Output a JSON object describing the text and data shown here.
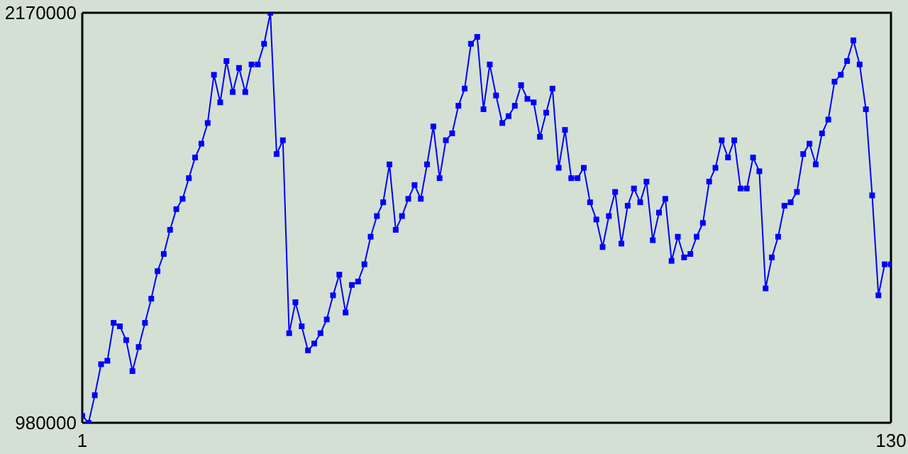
{
  "chart_data": {
    "type": "line",
    "x": [
      1,
      2,
      3,
      4,
      5,
      6,
      7,
      8,
      9,
      10,
      11,
      12,
      13,
      14,
      15,
      16,
      17,
      18,
      19,
      20,
      21,
      22,
      23,
      24,
      25,
      26,
      27,
      28,
      29,
      30,
      31,
      32,
      33,
      34,
      35,
      36,
      37,
      38,
      39,
      40,
      41,
      42,
      43,
      44,
      45,
      46,
      47,
      48,
      49,
      50,
      51,
      52,
      53,
      54,
      55,
      56,
      57,
      58,
      59,
      60,
      61,
      62,
      63,
      64,
      65,
      66,
      67,
      68,
      69,
      70,
      71,
      72,
      73,
      74,
      75,
      76,
      77,
      78,
      79,
      80,
      81,
      82,
      83,
      84,
      85,
      86,
      87,
      88,
      89,
      90,
      91,
      92,
      93,
      94,
      95,
      96,
      97,
      98,
      99,
      100,
      101,
      102,
      103,
      104,
      105,
      106,
      107,
      108,
      109,
      110,
      111,
      112,
      113,
      114,
      115,
      116,
      117,
      118,
      119,
      120,
      121,
      122,
      123,
      124,
      125,
      126,
      127,
      128,
      129,
      130
    ],
    "series": [
      {
        "color": "#0000ff",
        "values": [
          1000000,
          980000,
          1060000,
          1150000,
          1160000,
          1270000,
          1260000,
          1220000,
          1130000,
          1200000,
          1270000,
          1340000,
          1420000,
          1470000,
          1540000,
          1600000,
          1630000,
          1690000,
          1750000,
          1790000,
          1850000,
          1990000,
          1910000,
          2030000,
          1940000,
          2010000,
          1940000,
          2020000,
          2020000,
          2080000,
          2170000,
          1760000,
          1800000,
          1240000,
          1330000,
          1260000,
          1190000,
          1210000,
          1240000,
          1280000,
          1350000,
          1410000,
          1300000,
          1380000,
          1390000,
          1440000,
          1520000,
          1580000,
          1620000,
          1730000,
          1540000,
          1580000,
          1630000,
          1670000,
          1630000,
          1730000,
          1840000,
          1690000,
          1800000,
          1820000,
          1900000,
          1950000,
          2080000,
          2100000,
          1890000,
          2020000,
          1930000,
          1850000,
          1870000,
          1900000,
          1960000,
          1920000,
          1910000,
          1810000,
          1880000,
          1950000,
          1720000,
          1830000,
          1690000,
          1690000,
          1720000,
          1620000,
          1570000,
          1490000,
          1580000,
          1650000,
          1500000,
          1610000,
          1660000,
          1620000,
          1680000,
          1510000,
          1590000,
          1630000,
          1450000,
          1520000,
          1460000,
          1470000,
          1520000,
          1560000,
          1680000,
          1720000,
          1800000,
          1750000,
          1800000,
          1660000,
          1660000,
          1750000,
          1710000,
          1370000,
          1460000,
          1520000,
          1610000,
          1620000,
          1650000,
          1760000,
          1790000,
          1730000,
          1820000,
          1860000,
          1970000,
          1990000,
          2030000,
          2090000,
          2020000,
          1890000,
          1640000,
          1350000,
          1440000,
          1440000
        ]
      }
    ],
    "xlim": [
      1,
      130
    ],
    "xticks": [
      1,
      130
    ],
    "ylim": [
      980000,
      2170000
    ],
    "yticks": [
      980000,
      2170000
    ],
    "marker": "square",
    "line_style": "solid"
  }
}
